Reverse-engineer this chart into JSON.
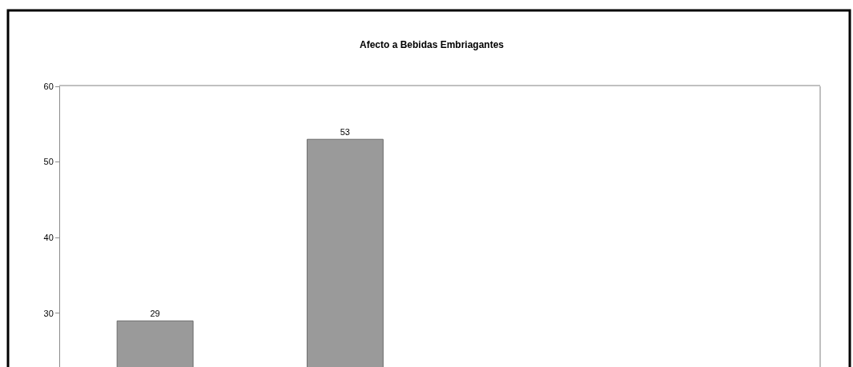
{
  "chart_data": {
    "type": "bar",
    "title": "Afecto a Bebidas Embriagantes",
    "categories": [
      null,
      null,
      null,
      null
    ],
    "values": [
      29,
      53,
      null,
      null
    ],
    "color": "#9a9a9a",
    "ylim": [
      22.9,
      60
    ],
    "yticks": [
      30,
      40,
      50,
      60
    ],
    "data_labels": true,
    "tick_labels": "y"
  }
}
